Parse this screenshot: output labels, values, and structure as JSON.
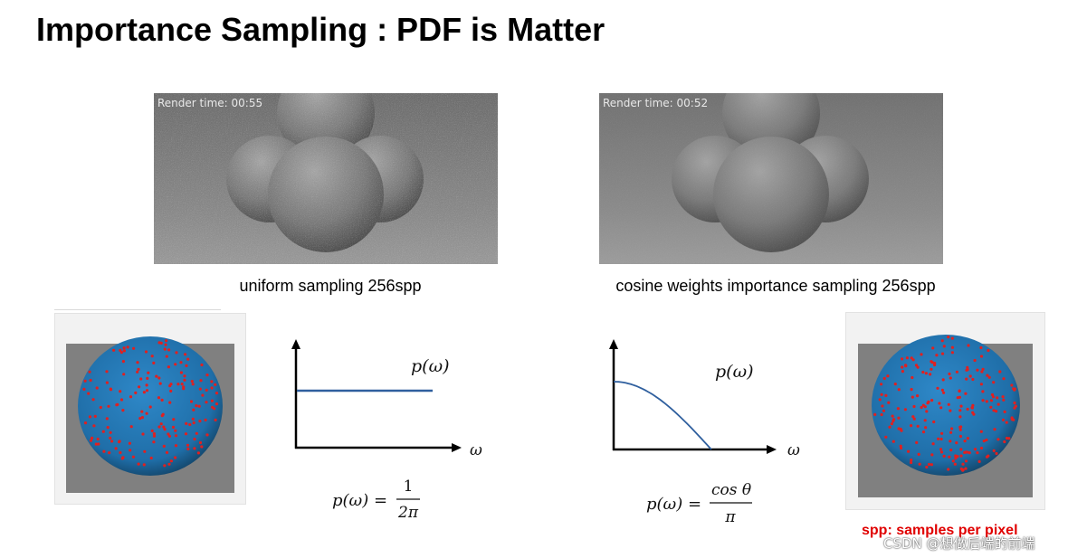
{
  "slide": {
    "title": "Importance Sampling : PDF is Matter"
  },
  "renders": [
    {
      "label": "Render time: 00:55",
      "caption": "uniform sampling 256spp"
    },
    {
      "label": "Render time: 00:52",
      "caption": "cosine weights importance sampling 256spp"
    }
  ],
  "graphs": [
    {
      "curve_label": "p(ω)",
      "x_axis_label": "ω"
    },
    {
      "curve_label": "p(ω)",
      "x_axis_label": "ω"
    }
  ],
  "formulas": {
    "uniform": {
      "lhs": "p(ω) =",
      "numerator": "1",
      "denominator": "2π"
    },
    "cosine": {
      "lhs": "p(ω) =",
      "numerator": "cos θ",
      "denominator": "π"
    }
  },
  "note": "spp: samples per pixel",
  "credit": "CSDN @想做后端的前端",
  "colors": {
    "curve": "#2f5f9e",
    "note": "#e00000",
    "sphere_blue": "#2a7fc0",
    "sample_dot": "#e02020"
  }
}
